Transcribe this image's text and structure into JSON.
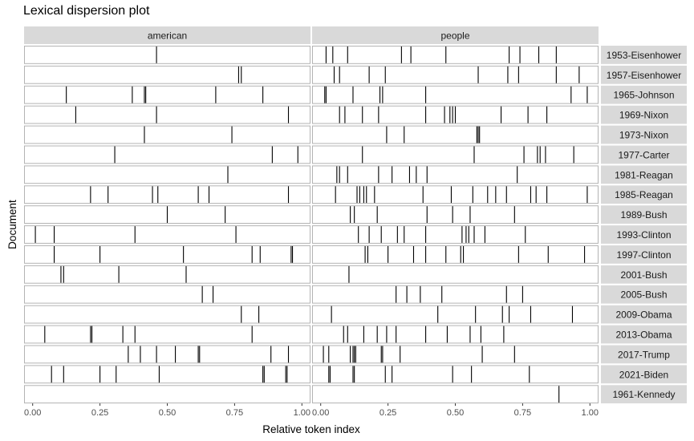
{
  "chart_data": {
    "type": "dispersion",
    "title": "Lexical dispersion plot",
    "xlabel": "Relative token index",
    "ylabel": "Document",
    "xlim": [
      0,
      1
    ],
    "x_ticks": [
      "0.00",
      "0.25",
      "0.50",
      "0.75",
      "1.00"
    ],
    "x_tick_values": [
      0,
      0.25,
      0.5,
      0.75,
      1
    ],
    "grid": false,
    "facets": [
      "american",
      "people"
    ],
    "documents": [
      "1953-Eisenhower",
      "1957-Eisenhower",
      "1965-Johnson",
      "1969-Nixon",
      "1973-Nixon",
      "1977-Carter",
      "1981-Reagan",
      "1985-Reagan",
      "1989-Bush",
      "1993-Clinton",
      "1997-Clinton",
      "2001-Bush",
      "2005-Bush",
      "2009-Obama",
      "2013-Obama",
      "2017-Trump",
      "2021-Biden",
      "1961-Kennedy"
    ],
    "positions": {
      "american": {
        "1953-Eisenhower": [
          0.46
        ],
        "1957-Eisenhower": [
          0.765,
          0.775
        ],
        "1965-Johnson": [
          0.125,
          0.37,
          0.415,
          0.42,
          0.68,
          0.855
        ],
        "1969-Nixon": [
          0.16,
          0.46,
          0.95
        ],
        "1973-Nixon": [
          0.415,
          0.74
        ],
        "1977-Carter": [
          0.305,
          0.89,
          0.985
        ],
        "1981-Reagan": [
          0.725
        ],
        "1985-Reagan": [
          0.215,
          0.28,
          0.445,
          0.465,
          0.615,
          0.655,
          0.95
        ],
        "1989-Bush": [
          0.5,
          0.715
        ],
        "1993-Clinton": [
          0.01,
          0.08,
          0.38,
          0.755
        ],
        "1997-Clinton": [
          0.08,
          0.25,
          0.56,
          0.815,
          0.845,
          0.96,
          0.965
        ],
        "2001-Bush": [
          0.105,
          0.115,
          0.32,
          0.57
        ],
        "2005-Bush": [
          0.63,
          0.67
        ],
        "2009-Obama": [
          0.775,
          0.84
        ],
        "2013-Obama": [
          0.045,
          0.215,
          0.22,
          0.335,
          0.38,
          0.815
        ],
        "2017-Trump": [
          0.355,
          0.4,
          0.46,
          0.53,
          0.615,
          0.62,
          0.885,
          0.95
        ],
        "2021-Biden": [
          0.07,
          0.115,
          0.25,
          0.31,
          0.47,
          0.855,
          0.86,
          0.94,
          0.945
        ],
        "1961-Kennedy": []
      },
      "people": {
        "1953-Eisenhower": [
          0.02,
          0.045,
          0.1,
          0.3,
          0.335,
          0.465,
          0.7,
          0.74,
          0.81,
          0.875
        ],
        "1957-Eisenhower": [
          0.05,
          0.07,
          0.18,
          0.24,
          0.585,
          0.695,
          0.735,
          0.875,
          0.96
        ],
        "1965-Johnson": [
          0.015,
          0.02,
          0.12,
          0.22,
          0.23,
          0.39,
          0.93,
          0.99
        ],
        "1969-Nixon": [
          0.07,
          0.09,
          0.155,
          0.215,
          0.39,
          0.46,
          0.48,
          0.49,
          0.5,
          0.67,
          0.77,
          0.84
        ],
        "1973-Nixon": [
          0.245,
          0.31,
          0.58,
          0.585,
          0.59
        ],
        "1977-Carter": [
          0.155,
          0.57,
          0.755,
          0.805,
          0.815,
          0.835,
          0.94
        ],
        "1981-Reagan": [
          0.06,
          0.07,
          0.1,
          0.215,
          0.265,
          0.33,
          0.355,
          0.395,
          0.73
        ],
        "1985-Reagan": [
          0.055,
          0.135,
          0.145,
          0.16,
          0.17,
          0.2,
          0.38,
          0.485,
          0.565,
          0.62,
          0.65,
          0.69,
          0.78,
          0.8,
          0.84,
          0.99
        ],
        "1989-Bush": [
          0.11,
          0.125,
          0.21,
          0.395,
          0.49,
          0.555,
          0.72
        ],
        "1993-Clinton": [
          0.14,
          0.18,
          0.225,
          0.285,
          0.31,
          0.39,
          0.525,
          0.54,
          0.55,
          0.57,
          0.61,
          0.76
        ],
        "1997-Clinton": [
          0.165,
          0.175,
          0.25,
          0.345,
          0.39,
          0.465,
          0.52,
          0.53,
          0.735,
          0.845,
          0.98
        ],
        "2001-Bush": [
          0.105
        ],
        "2005-Bush": [
          0.28,
          0.32,
          0.37,
          0.45,
          0.69,
          0.75
        ],
        "2009-Obama": [
          0.04,
          0.435,
          0.575,
          0.675,
          0.7,
          0.78,
          0.935
        ],
        "2013-Obama": [
          0.085,
          0.1,
          0.16,
          0.21,
          0.245,
          0.28,
          0.39,
          0.47,
          0.555,
          0.595,
          0.68
        ],
        "2017-Trump": [
          0.01,
          0.03,
          0.11,
          0.12,
          0.125,
          0.13,
          0.225,
          0.23,
          0.295,
          0.6,
          0.72
        ],
        "2021-Biden": [
          0.03,
          0.035,
          0.12,
          0.125,
          0.24,
          0.265,
          0.49,
          0.56,
          0.775
        ],
        "1961-Kennedy": [
          0.885
        ]
      }
    }
  }
}
